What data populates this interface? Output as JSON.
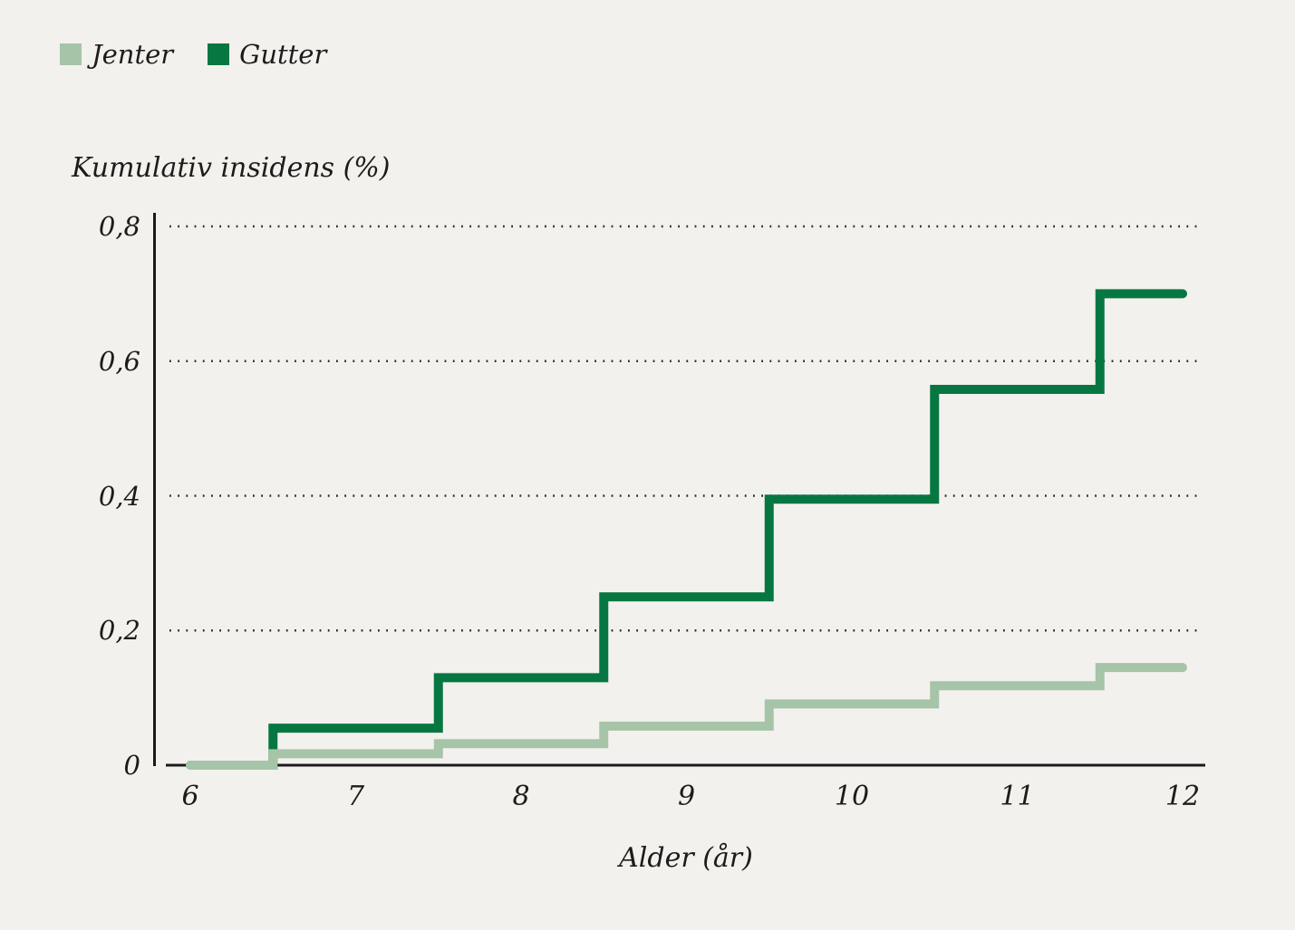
{
  "figure": {
    "background": "#f3f1ee"
  },
  "colors": {
    "bg": "#f3f1ee",
    "text": "#1d1c1a",
    "axis": "#1a1a1a",
    "grid": "#2b2b2b",
    "jenter": "#a6c4a8",
    "gutter": "#077742"
  },
  "legend": {
    "position": "top-left",
    "items": [
      {
        "label": "Jenter",
        "color_key": "jenter"
      },
      {
        "label": "Gutter",
        "color_key": "gutter"
      }
    ]
  },
  "y_axis": {
    "title": "Kumulativ insidens (%)",
    "range": [
      0,
      0.8
    ],
    "ticks": [
      {
        "label": "0",
        "value": 0
      },
      {
        "label": "0,2",
        "value": 0.2
      },
      {
        "label": "0,4",
        "value": 0.4
      },
      {
        "label": "0,6",
        "value": 0.6
      },
      {
        "label": "0,8",
        "value": 0.8
      }
    ],
    "gridlines": "dotted-horizontal"
  },
  "x_axis": {
    "title": "Alder (år)",
    "range": [
      6,
      12
    ],
    "ticks": [
      {
        "label": "6",
        "value": 6
      },
      {
        "label": "7",
        "value": 7
      },
      {
        "label": "8",
        "value": 8
      },
      {
        "label": "9",
        "value": 9
      },
      {
        "label": "10",
        "value": 10
      },
      {
        "label": "11",
        "value": 11
      },
      {
        "label": "12",
        "value": 12
      }
    ]
  },
  "chart_data": {
    "type": "line",
    "style": "step-after",
    "title": "",
    "xlabel": "Alder (år)",
    "ylabel": "Kumulativ insidens (%)",
    "xlim": [
      6,
      12
    ],
    "ylim": [
      0,
      0.8
    ],
    "grid": "horizontal-dotted",
    "legend_position": "top-left",
    "series": [
      {
        "name": "Jenter",
        "color_key": "jenter",
        "steps": [
          {
            "x": 6,
            "y": 0
          },
          {
            "x": 6.5,
            "y": 0.017
          },
          {
            "x": 7.5,
            "y": 0.032
          },
          {
            "x": 8.5,
            "y": 0.058
          },
          {
            "x": 9.5,
            "y": 0.091
          },
          {
            "x": 10.5,
            "y": 0.118
          },
          {
            "x": 11.5,
            "y": 0.145
          }
        ],
        "x_end": 12
      },
      {
        "name": "Gutter",
        "color_key": "gutter",
        "steps": [
          {
            "x": 6,
            "y": 0
          },
          {
            "x": 6.5,
            "y": 0.055
          },
          {
            "x": 7.5,
            "y": 0.13
          },
          {
            "x": 8.5,
            "y": 0.25
          },
          {
            "x": 9.5,
            "y": 0.395
          },
          {
            "x": 10.5,
            "y": 0.558
          },
          {
            "x": 11.5,
            "y": 0.7
          }
        ],
        "x_end": 12
      }
    ]
  }
}
